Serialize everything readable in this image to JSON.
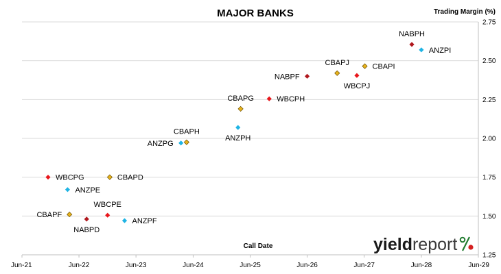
{
  "chart_data": {
    "type": "scatter",
    "title": "MAJOR BANKS",
    "xlabel": "Call Date",
    "ylabel": "Trading Margin  (%)",
    "x_ticks": [
      "Jun-21",
      "Jun-22",
      "Jun-23",
      "Jun-24",
      "Jun-25",
      "Jun-26",
      "Jun-27",
      "Jun-28",
      "Jun-29"
    ],
    "xlim": [
      "Jun-21",
      "Jun-29"
    ],
    "ylim": [
      1.25,
      2.75
    ],
    "y_ticks": [
      "1.25",
      "1.50",
      "1.75",
      "2.00",
      "2.25",
      "2.50",
      "2.75"
    ],
    "y_axis_side": "right",
    "grid": "horizontal",
    "marker": "diamond",
    "colors": {
      "ANZ": "#1fb4e4",
      "WBC": "#e8161b",
      "CBA": "#e8b31c",
      "NAB": "#b0181e"
    },
    "points": [
      {
        "label": "WBCPG",
        "issuer": "WBC",
        "x": "2021-11-15",
        "y": 1.75,
        "label_pos": "right"
      },
      {
        "label": "ANZPE",
        "issuer": "ANZ",
        "x": "2022-03-20",
        "y": 1.67,
        "label_pos": "right"
      },
      {
        "label": "CBAPD",
        "issuer": "CBA",
        "x": "2022-12-15",
        "y": 1.75,
        "label_pos": "right"
      },
      {
        "label": "CBAPF",
        "issuer": "CBA",
        "x": "2022-04-01",
        "y": 1.51,
        "label_pos": "left"
      },
      {
        "label": "NABPD",
        "issuer": "NAB",
        "x": "2022-07-20",
        "y": 1.48,
        "label_pos": "below"
      },
      {
        "label": "WBCPE",
        "issuer": "WBC",
        "x": "2022-12-01",
        "y": 1.505,
        "label_pos": "above"
      },
      {
        "label": "ANZPF",
        "issuer": "ANZ",
        "x": "2023-03-20",
        "y": 1.47,
        "label_pos": "right"
      },
      {
        "label": "ANZPG",
        "issuer": "ANZ",
        "x": "2024-03-15",
        "y": 1.97,
        "label_pos": "left"
      },
      {
        "label": "CBAPH",
        "issuer": "CBA",
        "x": "2024-04-20",
        "y": 1.975,
        "label_pos": "above"
      },
      {
        "label": "ANZPH",
        "issuer": "ANZ",
        "x": "2025-03-15",
        "y": 2.07,
        "label_pos": "below"
      },
      {
        "label": "CBAPG",
        "issuer": "CBA",
        "x": "2025-04-01",
        "y": 2.19,
        "label_pos": "above"
      },
      {
        "label": "WBCPH",
        "issuer": "WBC",
        "x": "2025-10-01",
        "y": 2.255,
        "label_pos": "right"
      },
      {
        "label": "NABPF",
        "issuer": "NAB",
        "x": "2026-06-01",
        "y": 2.4,
        "label_pos": "left"
      },
      {
        "label": "CBAPJ",
        "issuer": "CBA",
        "x": "2026-12-10",
        "y": 2.42,
        "label_pos": "above"
      },
      {
        "label": "WBCPJ",
        "issuer": "WBC",
        "x": "2027-04-15",
        "y": 2.405,
        "label_pos": "below"
      },
      {
        "label": "CBAPI",
        "issuer": "CBA",
        "x": "2027-06-05",
        "y": 2.465,
        "label_pos": "right"
      },
      {
        "label": "NABPH",
        "issuer": "NAB",
        "x": "2028-04-01",
        "y": 2.605,
        "label_pos": "above"
      },
      {
        "label": "ANZPI",
        "issuer": "ANZ",
        "x": "2028-06-01",
        "y": 2.57,
        "label_pos": "right"
      }
    ]
  },
  "logo": {
    "text_yield": "yield",
    "text_report": "report",
    "text_pct": "%",
    "color_yield": "#1a1a1a",
    "color_report": "#3a3a3a",
    "color_pct_green": "#1f7a2e",
    "color_pct_red": "#d42020"
  }
}
